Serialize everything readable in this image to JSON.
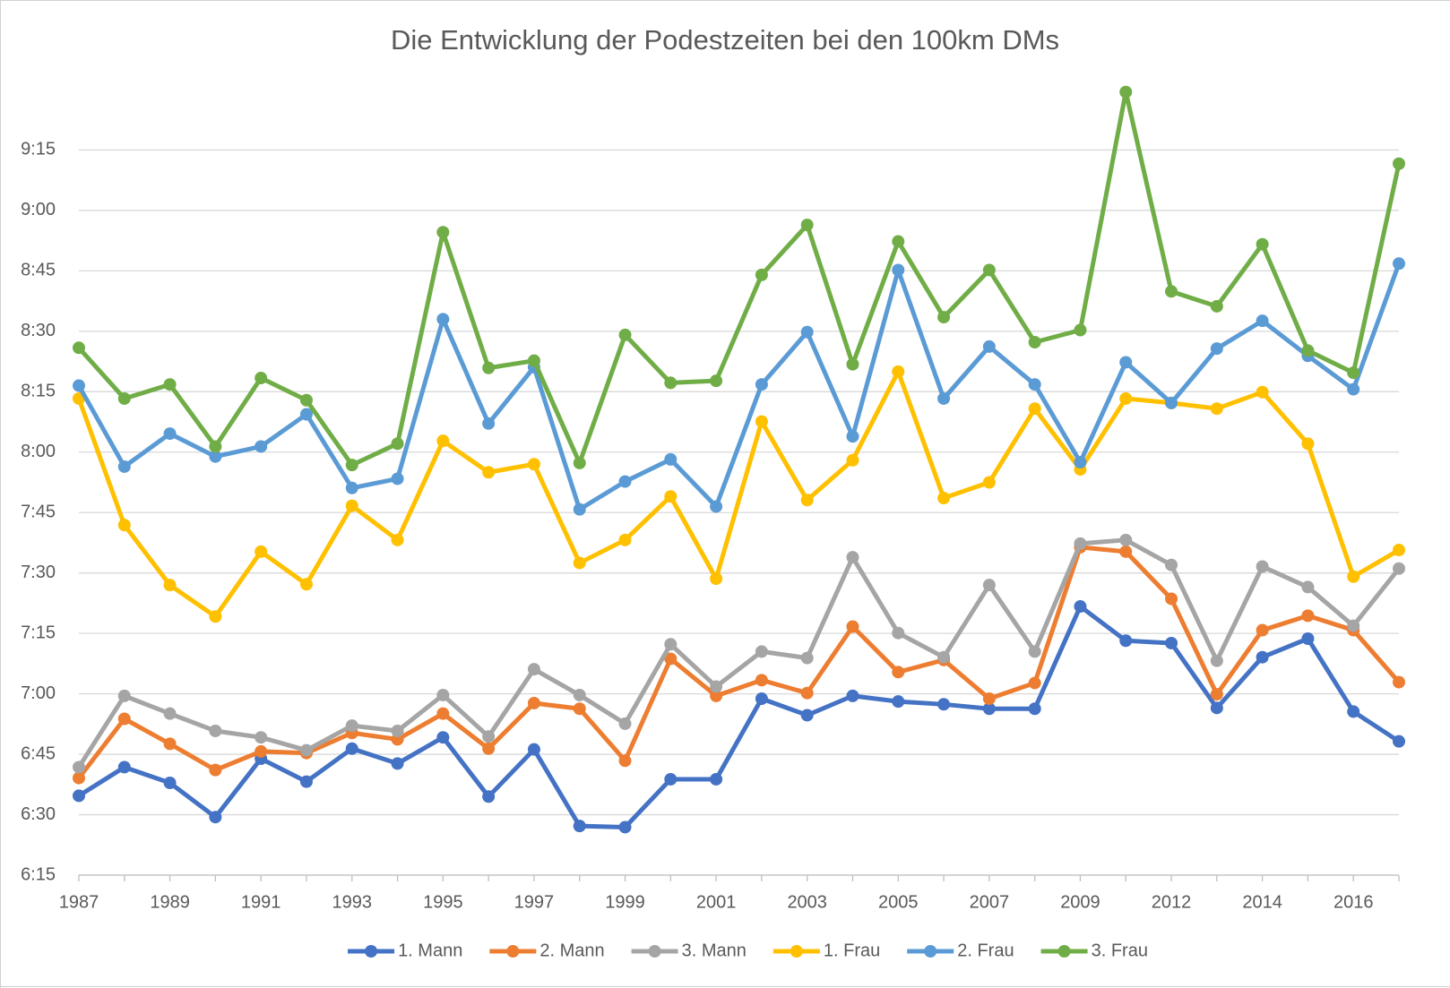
{
  "chart_data": {
    "type": "line",
    "title": "Die Entwicklung der Podestzeiten bei den 100km DMs",
    "categories": [
      "1987",
      null,
      "1989",
      null,
      "1991",
      null,
      "1993",
      null,
      "1995",
      null,
      "1997",
      null,
      "1999",
      null,
      "2001",
      null,
      "2003",
      null,
      "2005",
      null,
      "2007",
      null,
      "2009",
      null,
      "2012",
      null,
      "2014",
      null,
      "2016",
      null
    ],
    "ylim": [
      375,
      570
    ],
    "yticks": [
      {
        "value": 375,
        "label": "6:15"
      },
      {
        "value": 390,
        "label": "6:30"
      },
      {
        "value": 405,
        "label": "6:45"
      },
      {
        "value": 420,
        "label": "7:00"
      },
      {
        "value": 435,
        "label": "7:15"
      },
      {
        "value": 450,
        "label": "7:30"
      },
      {
        "value": 465,
        "label": "7:45"
      },
      {
        "value": 480,
        "label": "8:00"
      },
      {
        "value": 495,
        "label": "8:15"
      },
      {
        "value": 510,
        "label": "8:30"
      },
      {
        "value": 525,
        "label": "8:45"
      },
      {
        "value": 540,
        "label": "9:00"
      },
      {
        "value": 555,
        "label": "9:15"
      }
    ],
    "grid": true,
    "legend": "bottom",
    "series": [
      {
        "name": "1. Mann",
        "color": "#4472c4",
        "values": [
          394.7,
          401.8,
          397.9,
          389.4,
          403.9,
          398.2,
          406.4,
          402.7,
          409.2,
          394.5,
          406.2,
          387.2,
          386.9,
          398.8,
          398.8,
          418.8,
          414.7,
          419.5,
          418.1,
          417.4,
          416.3,
          416.3,
          441.7,
          433.2,
          432.6,
          416.5,
          429.1,
          433.7,
          415.6,
          408.2
        ]
      },
      {
        "name": "2. Mann",
        "color": "#ed7d31",
        "values": [
          399.1,
          413.8,
          407.6,
          401.1,
          405.7,
          405.3,
          410.3,
          408.7,
          415.1,
          406.4,
          417.7,
          416.3,
          403.4,
          428.7,
          419.5,
          423.4,
          420.2,
          436.7,
          425.4,
          428.4,
          418.8,
          422.7,
          456.4,
          455.3,
          443.6,
          419.9,
          435.8,
          439.4,
          435.8,
          422.9
        ]
      },
      {
        "name": "3. Mann",
        "color": "#a5a5a5",
        "values": [
          401.8,
          419.5,
          415.1,
          410.8,
          409.2,
          406.0,
          412.1,
          410.8,
          419.7,
          409.4,
          426.1,
          419.7,
          412.6,
          432.3,
          421.8,
          430.5,
          428.9,
          453.9,
          435.1,
          429.1,
          447.0,
          430.5,
          457.3,
          458.2,
          452.0,
          428.2,
          451.6,
          446.5,
          436.9,
          451.1
        ]
      },
      {
        "name": "1. Frau",
        "color": "#ffc000",
        "values": [
          493.3,
          461.9,
          447.0,
          439.2,
          455.3,
          447.2,
          466.7,
          458.2,
          482.8,
          475.0,
          477.0,
          452.5,
          458.2,
          469.0,
          448.6,
          487.6,
          468.1,
          478.0,
          500.0,
          468.6,
          472.5,
          490.8,
          475.7,
          493.3,
          492.2,
          490.8,
          494.9,
          482.1,
          449.1,
          455.7
        ]
      },
      {
        "name": "2. Frau",
        "color": "#5b9bd5",
        "values": [
          496.5,
          476.4,
          484.6,
          478.9,
          481.4,
          489.4,
          471.1,
          473.4,
          513.0,
          487.1,
          501.1,
          465.8,
          472.7,
          478.2,
          466.5,
          496.8,
          509.8,
          483.9,
          525.2,
          493.3,
          506.2,
          496.8,
          477.5,
          502.3,
          492.2,
          505.7,
          512.6,
          503.9,
          495.6,
          526.8
        ]
      },
      {
        "name": "3. Frau",
        "color": "#70ad47",
        "values": [
          505.9,
          493.3,
          496.8,
          481.4,
          498.4,
          492.9,
          476.8,
          482.1,
          534.6,
          500.9,
          502.7,
          477.3,
          509.1,
          497.2,
          497.7,
          524.0,
          536.4,
          501.8,
          532.3,
          513.5,
          525.2,
          507.3,
          510.3,
          569.4,
          519.9,
          516.2,
          531.6,
          505.2,
          499.7,
          551.6
        ]
      }
    ]
  }
}
